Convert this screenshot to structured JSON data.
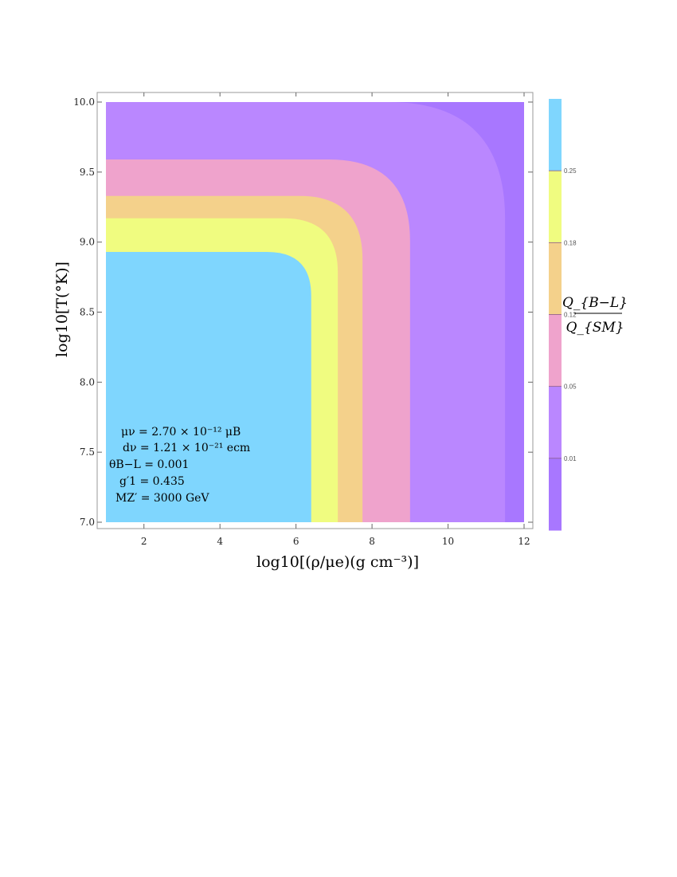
{
  "chart_data": {
    "type": "contour",
    "x": {
      "label": "log10[(ρ/μe)(g cm⁻³)]",
      "range": [
        1,
        12
      ],
      "ticks": [
        2,
        4,
        6,
        8,
        10,
        12
      ]
    },
    "y": {
      "label": "log10[T(°K)]",
      "range": [
        7.0,
        10.0
      ],
      "ticks": [
        "7.0",
        "7.5",
        "8.0",
        "8.5",
        "9.0",
        "9.5",
        "10.0"
      ]
    },
    "colorbar": {
      "title_num": "Q_{B−L}",
      "title_den": "Q_{SM}",
      "ticks": [
        "0.01",
        "0.05",
        "0.12",
        "0.18",
        "0.25"
      ]
    },
    "bands": [
      {
        "color": "#7fd6fe",
        "x_edge": 6.4,
        "y_edge": 8.93
      },
      {
        "color": "#f0fc80",
        "x_edge": 7.1,
        "y_edge": 9.17
      },
      {
        "color": "#f4d18b",
        "x_edge": 7.75,
        "y_edge": 9.33
      },
      {
        "color": "#efa3cc",
        "x_edge": 9.0,
        "y_edge": 9.59
      },
      {
        "color": "#ba87ff",
        "x_edge": 11.5,
        "y_edge": 10.0
      },
      {
        "color": "#a877ff"
      }
    ],
    "parameters": [
      "μν = 2.70 × 10⁻¹² μB",
      "dν = 1.21 × 10⁻²¹ ecm",
      "θB−L = 0.001",
      "g′1 = 0.435",
      "MZ′ = 3000 GeV"
    ],
    "grid": false
  }
}
